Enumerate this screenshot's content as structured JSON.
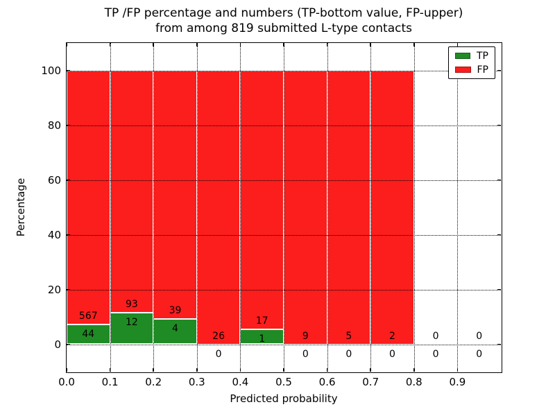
{
  "chart_data": {
    "type": "bar",
    "stacked": true,
    "title_line1": "TP /FP percentage and numbers (TP-bottom value, FP-upper)",
    "title_line2": "from among 819 submitted L-type contacts",
    "xlabel": "Predicted probability",
    "ylabel": "Percentage",
    "xlim": [
      0.0,
      1.0
    ],
    "ylim": [
      -10,
      110
    ],
    "xtick_values": [
      0.0,
      0.1,
      0.2,
      0.3,
      0.4,
      0.5,
      0.6,
      0.7,
      0.8,
      0.9
    ],
    "xtick_labels": [
      "0.0",
      "0.1",
      "0.2",
      "0.3",
      "0.4",
      "0.5",
      "0.6",
      "0.7",
      "0.8",
      "0.9"
    ],
    "ytick_values": [
      0,
      20,
      40,
      60,
      80,
      100
    ],
    "ytick_labels": [
      "0",
      "20",
      "40",
      "60",
      "80",
      "100"
    ],
    "grid": {
      "style": "dotted",
      "color": "#000000",
      "on": true
    },
    "colors": {
      "tp": "#1f8b24",
      "fp": "#fc1d1d",
      "bar_edge": "#ffffff",
      "text": "#000000",
      "background": "#ffffff"
    },
    "legend": {
      "position": "upper right",
      "entries": [
        {
          "label": "TP",
          "color": "#1f8b24"
        },
        {
          "label": "FP",
          "color": "#fc1d1d"
        }
      ]
    },
    "bins": [
      {
        "x0": 0.0,
        "x1": 0.1,
        "tp": 44,
        "fp": 567
      },
      {
        "x0": 0.1,
        "x1": 0.2,
        "tp": 12,
        "fp": 93
      },
      {
        "x0": 0.2,
        "x1": 0.3,
        "tp": 4,
        "fp": 39
      },
      {
        "x0": 0.3,
        "x1": 0.4,
        "tp": 0,
        "fp": 26
      },
      {
        "x0": 0.4,
        "x1": 0.5,
        "tp": 1,
        "fp": 17
      },
      {
        "x0": 0.5,
        "x1": 0.6,
        "tp": 0,
        "fp": 9
      },
      {
        "x0": 0.6,
        "x1": 0.7,
        "tp": 0,
        "fp": 5
      },
      {
        "x0": 0.7,
        "x1": 0.8,
        "tp": 0,
        "fp": 2
      },
      {
        "x0": 0.8,
        "x1": 0.9,
        "tp": 0,
        "fp": 0
      },
      {
        "x0": 0.9,
        "x1": 1.0,
        "tp": 0,
        "fp": 0
      }
    ]
  }
}
